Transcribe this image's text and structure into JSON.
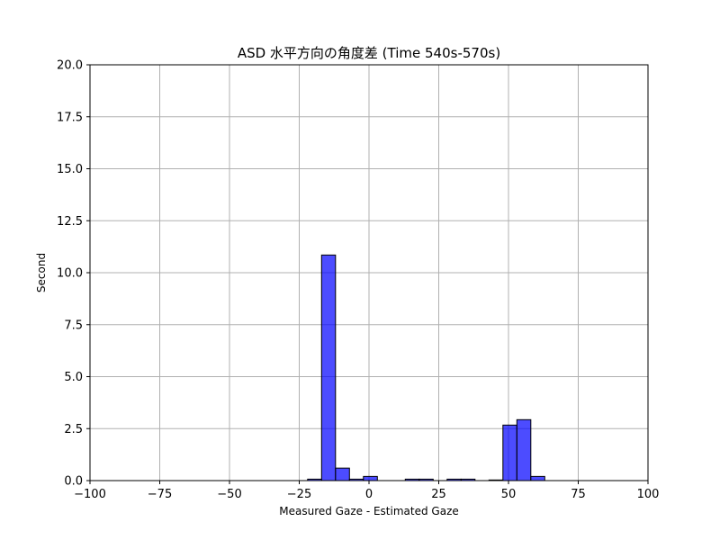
{
  "chart_data": {
    "type": "bar",
    "title": "ASD 水平方向の角度差 (Time 540s-570s)",
    "xlabel": "Measured Gaze - Estimated Gaze",
    "ylabel": "Second",
    "xlim": [
      -100,
      100
    ],
    "ylim": [
      0,
      20
    ],
    "xticks": [
      -100,
      -75,
      -50,
      -25,
      0,
      25,
      50,
      75,
      100
    ],
    "xtick_labels": [
      "−100",
      "−75",
      "−50",
      "−25",
      "0",
      "25",
      "50",
      "75",
      "100"
    ],
    "yticks": [
      0,
      2.5,
      5,
      7.5,
      10,
      12.5,
      15,
      17.5,
      20
    ],
    "ytick_labels": [
      "0.0",
      "2.5",
      "5.0",
      "7.5",
      "10.0",
      "12.5",
      "15.0",
      "17.5",
      "20.0"
    ],
    "grid": true,
    "bar_color": "#0000ff",
    "bar_opacity": 0.7,
    "edge_color": "#000000",
    "bins": [
      {
        "x0": -22,
        "x1": -17,
        "value": 0.07
      },
      {
        "x0": -17,
        "x1": -12,
        "value": 10.85
      },
      {
        "x0": -12,
        "x1": -7,
        "value": 0.6
      },
      {
        "x0": -7,
        "x1": -2,
        "value": 0.07
      },
      {
        "x0": -2,
        "x1": 3,
        "value": 0.2
      },
      {
        "x0": 13,
        "x1": 18,
        "value": 0.07
      },
      {
        "x0": 18,
        "x1": 23,
        "value": 0.07
      },
      {
        "x0": 28,
        "x1": 33,
        "value": 0.07
      },
      {
        "x0": 33,
        "x1": 38,
        "value": 0.07
      },
      {
        "x0": 43,
        "x1": 48,
        "value": 0.03
      },
      {
        "x0": 48,
        "x1": 53,
        "value": 2.67
      },
      {
        "x0": 53,
        "x1": 58,
        "value": 2.93
      },
      {
        "x0": 58,
        "x1": 63,
        "value": 0.2
      }
    ]
  }
}
